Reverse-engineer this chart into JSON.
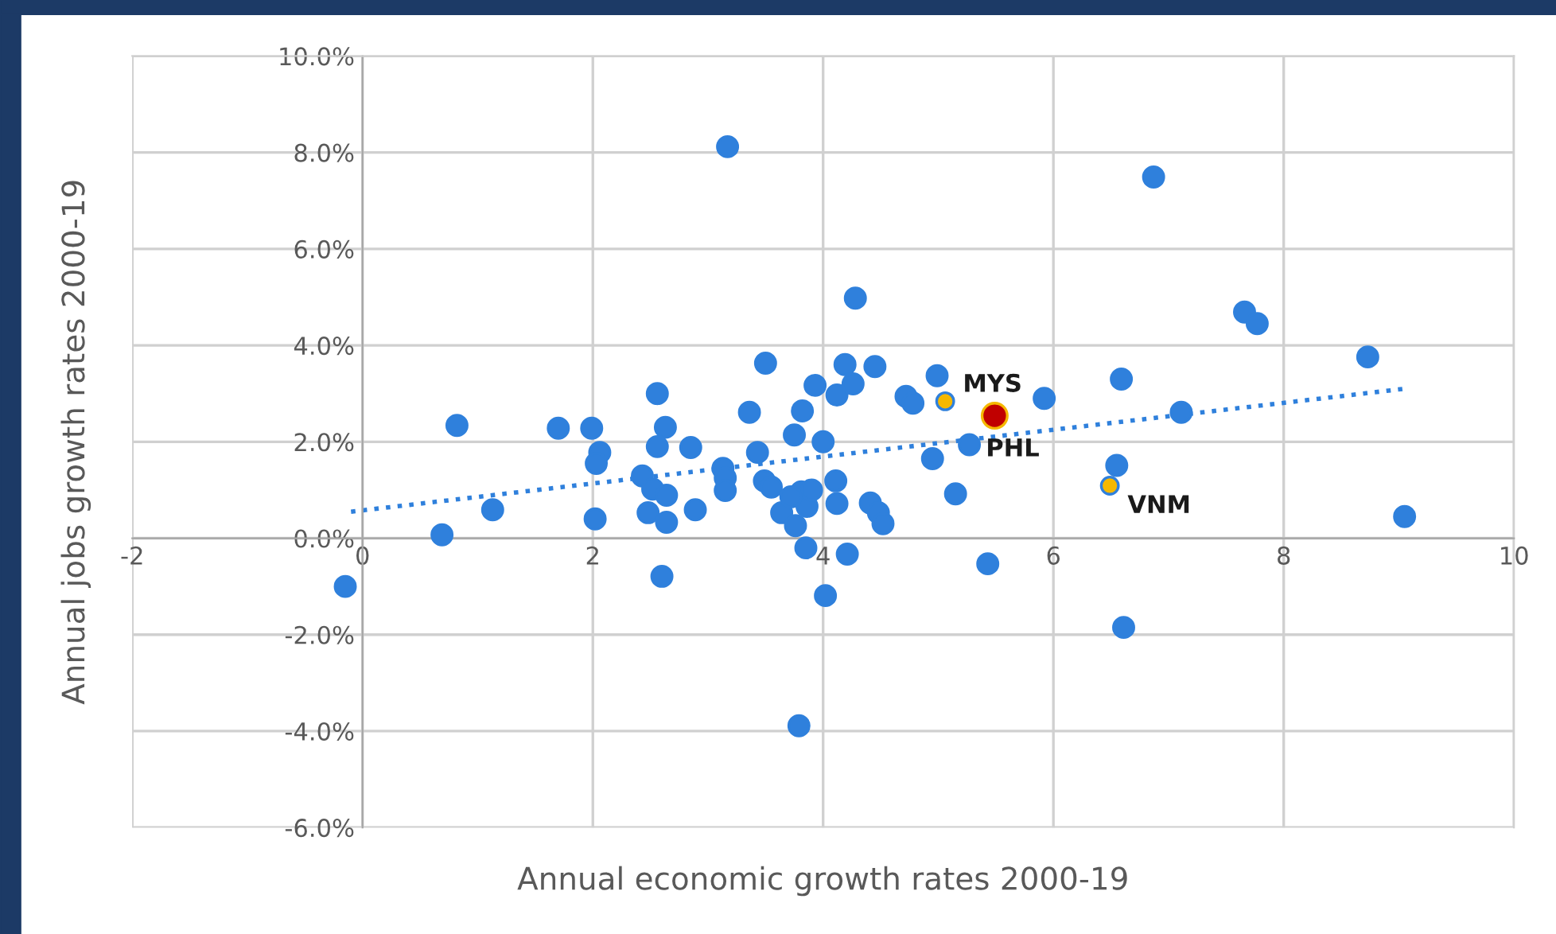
{
  "chart_data": {
    "type": "scatter",
    "xlabel": "Annual economic growth rates 2000-19",
    "ylabel": "Annual jobs growth rates 2000-19",
    "xlim": [
      -2,
      10
    ],
    "xticks": [
      -2,
      0,
      2,
      4,
      6,
      8,
      10
    ],
    "ylim": [
      -6,
      10
    ],
    "yticks": [
      {
        "value": -6,
        "label": "-6.0%"
      },
      {
        "value": -4,
        "label": "-4.0%"
      },
      {
        "value": -2,
        "label": "-2.0%"
      },
      {
        "value": 0,
        "label": "0.0%"
      },
      {
        "value": 2,
        "label": "2.0%"
      },
      {
        "value": 4,
        "label": "4.0%"
      },
      {
        "value": 6,
        "label": "6.0%"
      },
      {
        "value": 8,
        "label": "8.0%"
      },
      {
        "value": 10,
        "label": "10.0%"
      }
    ],
    "grid": true,
    "legend": false,
    "marker": "circle",
    "series": [
      {
        "color": "#2f80dc",
        "x": [
          -0.15,
          0.69,
          0.82,
          1.13,
          1.7,
          1.99,
          2.06,
          2.03,
          2.02,
          2.56,
          2.63,
          2.56,
          2.43,
          2.52,
          2.64,
          2.48,
          2.64,
          2.6,
          2.85,
          2.89,
          3.13,
          3.15,
          3.15,
          3.17,
          3.36,
          3.43,
          3.5,
          3.49,
          3.55,
          3.64,
          3.75,
          3.82,
          3.76,
          3.81,
          3.85,
          3.86,
          3.79,
          3.93,
          4.0,
          4.02,
          4.11,
          4.12,
          4.12,
          4.19,
          4.26,
          4.21,
          4.28,
          4.41,
          4.45,
          4.48,
          4.52,
          4.72,
          4.78,
          4.95,
          4.99,
          5.15,
          5.27,
          5.43,
          5.92,
          6.55,
          6.59,
          6.61,
          6.87,
          7.11,
          7.66,
          7.77,
          8.73,
          9.05,
          3.9,
          3.72
        ],
        "values": [
          -1.0,
          0.07,
          2.34,
          0.59,
          2.28,
          2.28,
          1.78,
          1.55,
          0.4,
          3.0,
          2.3,
          1.9,
          1.29,
          1.02,
          0.89,
          0.53,
          0.33,
          -0.79,
          1.88,
          0.59,
          1.45,
          1.25,
          0.99,
          8.12,
          2.61,
          1.78,
          3.63,
          1.19,
          1.06,
          0.53,
          2.14,
          2.64,
          0.26,
          0.96,
          -0.2,
          0.66,
          -3.89,
          3.17,
          2.0,
          -1.19,
          1.19,
          0.72,
          2.97,
          3.6,
          3.2,
          -0.33,
          4.98,
          0.73,
          3.56,
          0.53,
          0.3,
          2.94,
          2.8,
          1.65,
          3.37,
          0.92,
          1.94,
          -0.53,
          2.9,
          1.51,
          3.3,
          -1.85,
          7.49,
          2.61,
          4.69,
          4.45,
          3.76,
          0.45,
          1.0,
          0.86
        ]
      },
      {
        "color": "#f5b800",
        "x": [
          5.06,
          6.49
        ],
        "values": [
          2.84,
          1.09
        ]
      },
      {
        "color": "#c00000",
        "x": [
          5.49
        ],
        "values": [
          2.54
        ]
      },
      {
        "type": "line",
        "color": "#2f80dc",
        "line_style": "dotted",
        "marker": "none",
        "x": [
          -0.1,
          9.05
        ],
        "values": [
          0.55,
          3.1
        ]
      }
    ],
    "annotations": [
      {
        "text": "MYS",
        "x": 5.06,
        "y": 2.84
      },
      {
        "text": "PHL",
        "x": 5.49,
        "y": 2.54
      },
      {
        "text": "VNM",
        "x": 6.49,
        "y": 1.09
      }
    ]
  }
}
